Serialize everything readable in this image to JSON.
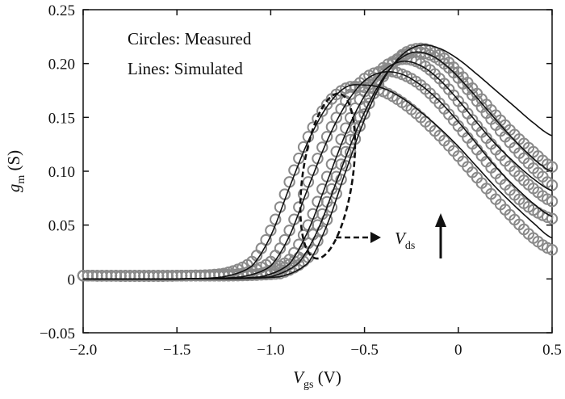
{
  "chart_data": {
    "type": "line",
    "xlabel": {
      "main": "V",
      "sub": "gs",
      "unit": " (V)"
    },
    "ylabel": {
      "main": "g",
      "sub": "m",
      "unit": " (S)"
    },
    "xlim": [
      -2.0,
      0.5
    ],
    "ylim": [
      -0.05,
      0.25
    ],
    "x_ticks": [
      -2.0,
      -1.5,
      -1.0,
      -0.5,
      0,
      0.5
    ],
    "x_tick_labels": [
      "−2.0",
      "−1.5",
      "−1.0",
      "−0.5",
      "0",
      "0.5"
    ],
    "y_ticks": [
      -0.05,
      0,
      0.05,
      0.1,
      0.15,
      0.2,
      0.25
    ],
    "y_tick_labels": [
      "−0.05",
      "0",
      "0.05",
      "0.10",
      "0.15",
      "0.20",
      "0.25"
    ],
    "grid": false,
    "legend_text": [
      "Circles: Measured",
      "Lines: Simulated"
    ],
    "annotation": {
      "main": "V",
      "sub": "ds"
    },
    "colors": {
      "simulated": "#111111",
      "measured": "#8a8a8a",
      "annotation": "#111111"
    },
    "series": [
      {
        "kind": "simulated",
        "x": [
          -2.0,
          -1.5,
          -1.25,
          -1.1,
          -1.0,
          -0.9,
          -0.8,
          -0.7,
          -0.6,
          -0.5,
          -0.4,
          -0.3,
          -0.2,
          -0.1,
          0.0,
          0.1,
          0.2,
          0.3,
          0.4,
          0.5
        ],
        "y": [
          0,
          0,
          0.002,
          0.012,
          0.04,
          0.085,
          0.128,
          0.16,
          0.178,
          0.18,
          0.177,
          0.168,
          0.155,
          0.14,
          0.123,
          0.104,
          0.085,
          0.068,
          0.052,
          0.038
        ]
      },
      {
        "kind": "simulated",
        "x": [
          -2.0,
          -1.5,
          -1.15,
          -1.0,
          -0.9,
          -0.8,
          -0.7,
          -0.6,
          -0.5,
          -0.4,
          -0.3,
          -0.2,
          -0.1,
          0.0,
          0.1,
          0.2,
          0.3,
          0.4,
          0.5
        ],
        "y": [
          0,
          0,
          0.002,
          0.012,
          0.04,
          0.085,
          0.128,
          0.162,
          0.184,
          0.192,
          0.19,
          0.18,
          0.165,
          0.146,
          0.125,
          0.104,
          0.086,
          0.07,
          0.058
        ]
      },
      {
        "kind": "simulated",
        "x": [
          -2.0,
          -1.5,
          -1.05,
          -0.9,
          -0.8,
          -0.7,
          -0.6,
          -0.5,
          -0.4,
          -0.3,
          -0.2,
          -0.1,
          0.0,
          0.1,
          0.2,
          0.3,
          0.4,
          0.5
        ],
        "y": [
          0,
          0,
          0.002,
          0.014,
          0.045,
          0.09,
          0.135,
          0.17,
          0.193,
          0.202,
          0.198,
          0.185,
          0.166,
          0.145,
          0.125,
          0.108,
          0.093,
          0.082
        ]
      },
      {
        "kind": "simulated",
        "x": [
          -2.0,
          -1.5,
          -1.0,
          -0.85,
          -0.75,
          -0.65,
          -0.55,
          -0.45,
          -0.35,
          -0.25,
          -0.15,
          -0.05,
          0.05,
          0.15,
          0.25,
          0.35,
          0.45,
          0.5
        ],
        "y": [
          0,
          0,
          0.002,
          0.015,
          0.045,
          0.09,
          0.135,
          0.172,
          0.198,
          0.21,
          0.208,
          0.196,
          0.178,
          0.158,
          0.138,
          0.12,
          0.105,
          0.1
        ]
      },
      {
        "kind": "simulated",
        "x": [
          -2.0,
          -1.5,
          -0.95,
          -0.8,
          -0.7,
          -0.6,
          -0.5,
          -0.4,
          -0.3,
          -0.2,
          -0.1,
          0.0,
          0.1,
          0.2,
          0.3,
          0.4,
          0.5
        ],
        "y": [
          0,
          0,
          0.002,
          0.015,
          0.05,
          0.1,
          0.148,
          0.185,
          0.208,
          0.217,
          0.214,
          0.204,
          0.19,
          0.175,
          0.16,
          0.145,
          0.133
        ]
      },
      {
        "kind": "measured",
        "x": [
          -2.0,
          -1.5,
          -1.25,
          -1.1,
          -1.0,
          -0.9,
          -0.8,
          -0.7,
          -0.6,
          -0.5,
          -0.4,
          -0.3,
          -0.2,
          -0.1,
          0.0,
          0.1,
          0.2,
          0.3,
          0.4,
          0.5
        ],
        "y": [
          0.003,
          0.003,
          0.005,
          0.016,
          0.045,
          0.09,
          0.132,
          0.162,
          0.177,
          0.178,
          0.174,
          0.164,
          0.15,
          0.133,
          0.114,
          0.094,
          0.074,
          0.055,
          0.038,
          0.027
        ]
      },
      {
        "kind": "measured",
        "x": [
          -2.0,
          -1.5,
          -1.15,
          -1.0,
          -0.9,
          -0.8,
          -0.7,
          -0.6,
          -0.5,
          -0.4,
          -0.3,
          -0.2,
          -0.1,
          0.0,
          0.1,
          0.2,
          0.3,
          0.4,
          0.5
        ],
        "y": [
          0.003,
          0.003,
          0.005,
          0.016,
          0.045,
          0.09,
          0.132,
          0.165,
          0.186,
          0.193,
          0.19,
          0.18,
          0.163,
          0.142,
          0.12,
          0.098,
          0.078,
          0.064,
          0.056
        ]
      },
      {
        "kind": "measured",
        "x": [
          -2.0,
          -1.5,
          -1.05,
          -0.9,
          -0.8,
          -0.7,
          -0.6,
          -0.5,
          -0.4,
          -0.3,
          -0.2,
          -0.1,
          0.0,
          0.1,
          0.2,
          0.3,
          0.4,
          0.5
        ],
        "y": [
          0.003,
          0.003,
          0.005,
          0.018,
          0.05,
          0.095,
          0.14,
          0.174,
          0.196,
          0.204,
          0.2,
          0.186,
          0.165,
          0.142,
          0.12,
          0.1,
          0.084,
          0.072
        ]
      },
      {
        "kind": "measured",
        "x": [
          -2.0,
          -1.5,
          -1.0,
          -0.85,
          -0.75,
          -0.65,
          -0.55,
          -0.45,
          -0.35,
          -0.25,
          -0.15,
          -0.05,
          0.05,
          0.15,
          0.25,
          0.35,
          0.45,
          0.5
        ],
        "y": [
          0.003,
          0.003,
          0.005,
          0.02,
          0.05,
          0.095,
          0.14,
          0.177,
          0.2,
          0.21,
          0.208,
          0.196,
          0.176,
          0.154,
          0.132,
          0.112,
          0.095,
          0.087
        ]
      },
      {
        "kind": "measured",
        "x": [
          -2.0,
          -1.5,
          -0.95,
          -0.8,
          -0.7,
          -0.6,
          -0.5,
          -0.4,
          -0.3,
          -0.2,
          -0.1,
          0.0,
          0.1,
          0.2,
          0.3,
          0.4,
          0.5
        ],
        "y": [
          0.003,
          0.003,
          0.005,
          0.02,
          0.055,
          0.105,
          0.153,
          0.188,
          0.208,
          0.214,
          0.208,
          0.192,
          0.172,
          0.152,
          0.134,
          0.118,
          0.104
        ]
      }
    ]
  }
}
